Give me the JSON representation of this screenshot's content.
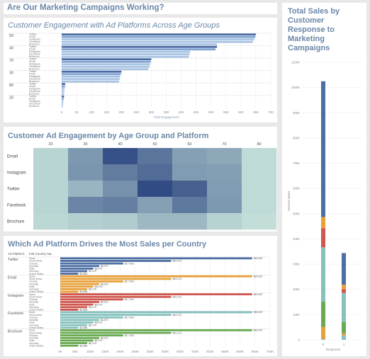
{
  "dashboard_title": "Are Our Marketing Campaigns Working?",
  "colors": {
    "Twitter": "#4e6fa3",
    "Email": "#e8a13a",
    "Instagram": "#d0574f",
    "Facebook": "#86c1bd",
    "Brochure": "#6aaa52",
    "bar_light": "#a9c4e3",
    "bar_mid": "#7fa4d2",
    "bar_dark": "#4a6aa6"
  },
  "chart_data": [
    {
      "type": "bar",
      "title": "Customer Engagement with Ad Platforms Across Age Groups",
      "orientation": "horizontal",
      "xlabel": "Total Engagement",
      "xlim": [
        0,
        700
      ],
      "xticks": [
        "0",
        "50",
        "100",
        "150",
        "200",
        "250",
        "300",
        "350",
        "400",
        "450",
        "500",
        "550",
        "600",
        "650",
        "700"
      ],
      "groups": [
        {
          "age": "50",
          "rows": [
            {
              "platform": "Twitter",
              "value": 650
            },
            {
              "platform": "Email",
              "value": 648
            },
            {
              "platform": "Instagram",
              "value": 645
            },
            {
              "platform": "Facebook",
              "value": 640
            },
            {
              "platform": "Brochure",
              "value": 520
            }
          ]
        },
        {
          "age": "40",
          "rows": [
            {
              "platform": "Twitter",
              "value": 520
            },
            {
              "platform": "Email",
              "value": 515
            },
            {
              "platform": "Instagram",
              "value": 430
            },
            {
              "platform": "Facebook",
              "value": 428
            },
            {
              "platform": "Brochure",
              "value": 426
            }
          ]
        },
        {
          "age": "70",
          "rows": [
            {
              "platform": "Twitter",
              "value": 300
            },
            {
              "platform": "Email",
              "value": 298
            },
            {
              "platform": "Instagram",
              "value": 296
            },
            {
              "platform": "Facebook",
              "value": 294
            },
            {
              "platform": "Brochure",
              "value": 290
            }
          ]
        },
        {
          "age": "30",
          "rows": [
            {
              "platform": "Twitter",
              "value": 200
            },
            {
              "platform": "Email",
              "value": 198
            },
            {
              "platform": "Instagram",
              "value": 196
            },
            {
              "platform": "Facebook",
              "value": 194
            },
            {
              "platform": "Brochure",
              "value": 192
            }
          ]
        },
        {
          "age": "80",
          "rows": [
            {
              "platform": "Twitter",
              "value": 12
            },
            {
              "platform": "Email",
              "value": 11
            },
            {
              "platform": "Instagram",
              "value": 10
            },
            {
              "platform": "Facebook",
              "value": 9
            },
            {
              "platform": "Brochure",
              "value": 8
            }
          ]
        },
        {
          "age": "20",
          "rows": [
            {
              "platform": "Twitter",
              "value": 8
            },
            {
              "platform": "Email",
              "value": 7
            },
            {
              "platform": "Instagram",
              "value": 6
            },
            {
              "platform": "Facebook",
              "value": 5
            },
            {
              "platform": "Brochure",
              "value": 4
            }
          ]
        }
      ]
    },
    {
      "type": "heatmap",
      "title": "Customer Ad Engagement by Age Group and Platform",
      "columns": [
        "20",
        "30",
        "40",
        "50",
        "60",
        "70",
        "80"
      ],
      "rows": [
        "Email",
        "Instagram",
        "Twitter",
        "Facebook",
        "Brochure"
      ],
      "values": [
        [
          0.12,
          0.5,
          0.95,
          0.72,
          0.45,
          0.4,
          0.08
        ],
        [
          0.12,
          0.52,
          0.68,
          0.78,
          0.48,
          0.46,
          0.08
        ],
        [
          0.12,
          0.32,
          0.55,
          0.98,
          0.85,
          0.48,
          0.08
        ],
        [
          0.12,
          0.62,
          0.66,
          0.45,
          0.7,
          0.5,
          0.08
        ],
        [
          0.1,
          0.16,
          0.18,
          0.3,
          0.3,
          0.14,
          0.06
        ]
      ]
    },
    {
      "type": "bar",
      "title": "Which Ad Platform Drives the Most Sales per Country",
      "orientation": "horizontal",
      "col_headers": [
        "Ad Platform",
        "Full Country Na.."
      ],
      "xlim": [
        0,
        700000
      ],
      "xticks": [
        "0K",
        "50K",
        "100K",
        "150K",
        "200K",
        "250K",
        "300K",
        "350K",
        "400K",
        "450K",
        "500K",
        "550K",
        "600K",
        "650K",
        "700K"
      ],
      "countries": [
        "Spain",
        "South Africa",
        "Canada",
        "Australia",
        "India",
        "Germany",
        "United States"
      ],
      "labels": [
        "$89,557",
        "$51,071",
        "$17,403",
        "$6,972",
        "$8,070",
        "$5,175",
        "$2,886"
      ],
      "platforms": [
        {
          "name": "Twitter",
          "values": [
            640000,
            370000,
            210000,
            130000,
            110000,
            90000,
            60000
          ]
        },
        {
          "name": "Email",
          "values": [
            640000,
            370000,
            210000,
            130000,
            110000,
            90000,
            60000
          ]
        },
        {
          "name": "Instagram",
          "values": [
            640000,
            370000,
            210000,
            130000,
            110000,
            90000,
            60000
          ]
        },
        {
          "name": "Facebook",
          "values": [
            640000,
            370000,
            210000,
            130000,
            110000,
            90000,
            60000
          ]
        },
        {
          "name": "Brochure",
          "values": [
            640000,
            370000,
            210000,
            130000,
            110000,
            90000,
            60000
          ]
        }
      ]
    },
    {
      "type": "bar",
      "stacked": true,
      "title": "Total Sales by Customer Response to Marketing Campaigns",
      "ylabel": "Amount Spent",
      "xlabel": "Response",
      "ylim": [
        0,
        1100000
      ],
      "yticks": [
        "0",
        "100K",
        "200K",
        "300K",
        "400K",
        "500K",
        "600K",
        "700K",
        "800K",
        "900K",
        "1000K",
        "1100K"
      ],
      "categories": [
        "0",
        "1"
      ],
      "series": [
        {
          "name": "Brochure",
          "values": [
            0,
            0
          ]
        },
        {
          "name": "Twitter",
          "values": [
            540000,
            150000
          ]
        },
        {
          "name": "Email",
          "values": [
            45000,
            20000
          ]
        },
        {
          "name": "Instagram",
          "values": [
            75000,
            15000
          ]
        },
        {
          "name": "Facebook",
          "values": [
            210000,
            120000
          ]
        },
        {
          "name": "Brochure",
          "values": [
            105000,
            30000
          ]
        },
        {
          "name": "Email",
          "values": [
            48000,
            8000
          ]
        },
        {
          "name": "Facebook",
          "values": [
            5000,
            10000
          ]
        }
      ],
      "segments": [
        {
          "color": "Twitter",
          "values": [
            538000,
            125000
          ]
        },
        {
          "color": "Email",
          "values": [
            45000,
            18000
          ]
        },
        {
          "color": "Instagram",
          "values": [
            75000,
            15000
          ]
        },
        {
          "color": "Facebook",
          "values": [
            215000,
            115000
          ]
        },
        {
          "color": "Brochure",
          "values": [
            100000,
            45000
          ]
        },
        {
          "color": "Email",
          "values": [
            48000,
            8000
          ]
        },
        {
          "color": "Facebook",
          "values": [
            4000,
            18000
          ]
        }
      ]
    }
  ]
}
